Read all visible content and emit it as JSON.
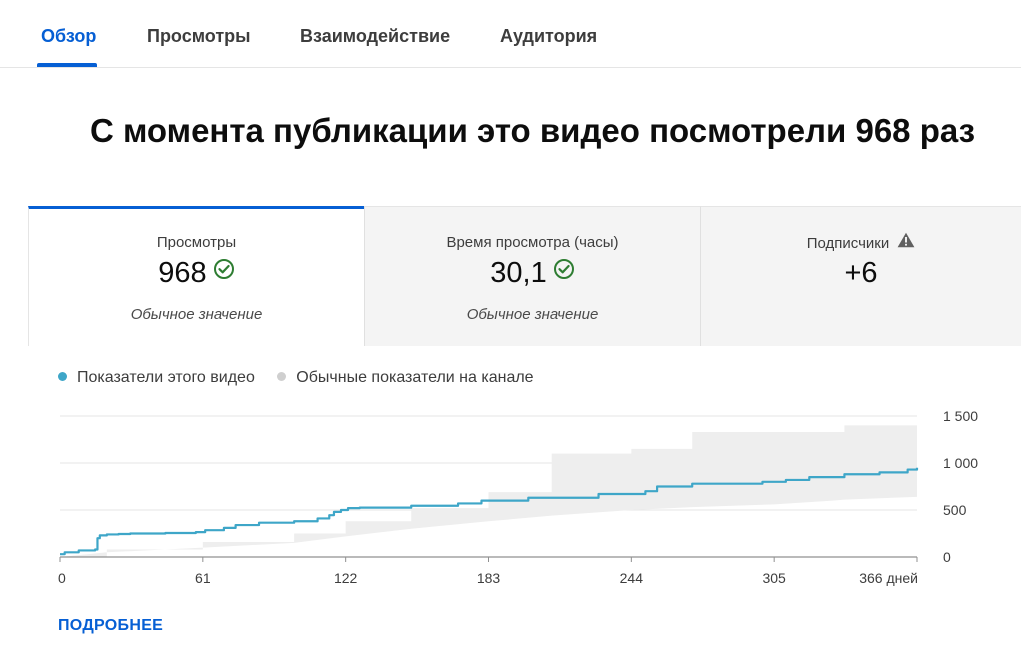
{
  "tabs": [
    {
      "label": "Обзор",
      "active": true
    },
    {
      "label": "Просмотры",
      "active": false
    },
    {
      "label": "Взаимодействие",
      "active": false
    },
    {
      "label": "Аудитория",
      "active": false
    }
  ],
  "headline": "С момента публикации это видео посмотрели 968 раз",
  "metrics": [
    {
      "label": "Просмотры",
      "value": "968",
      "note": "Обычное значение",
      "status_icon": "check-circle-icon",
      "selected": true
    },
    {
      "label": "Время просмотра (часы)",
      "value": "30,1",
      "note": "Обычное значение",
      "status_icon": "check-circle-icon",
      "selected": false
    },
    {
      "label": "Подписчики",
      "value": "+6",
      "status_icon": "warning-icon",
      "selected": false
    }
  ],
  "legend": {
    "this_video": "Показатели этого видео",
    "typical": "Обычные показатели на канале"
  },
  "colors": {
    "accent": "#065fd4",
    "series_line": "#3ea6c8",
    "typical_band": "#eeeeee",
    "typical_dot": "#cfcfcf",
    "check_green": "#2e7d32",
    "warning_gray": "#606060"
  },
  "chart_data": {
    "type": "area",
    "x_ticks": [
      0,
      61,
      122,
      183,
      244,
      305,
      366
    ],
    "x_tick_labels": [
      "0",
      "61",
      "122",
      "183",
      "244",
      "305",
      "366 дней"
    ],
    "y_ticks": [
      0,
      500,
      1000,
      1500
    ],
    "y_tick_labels": [
      "0",
      "500",
      "1 000",
      "1 500"
    ],
    "xlim": [
      0,
      366
    ],
    "ylim": [
      0,
      1500
    ],
    "grid": true,
    "series": [
      {
        "name": "Показатели этого видео",
        "x": [
          0,
          2,
          8,
          15,
          16,
          17,
          20,
          25,
          30,
          45,
          58,
          62,
          70,
          75,
          85,
          100,
          110,
          115,
          117,
          120,
          123,
          128,
          150,
          170,
          180,
          200,
          230,
          250,
          255,
          270,
          300,
          310,
          320,
          335,
          350,
          362,
          366
        ],
        "y": [
          30,
          50,
          70,
          80,
          200,
          230,
          240,
          245,
          250,
          255,
          265,
          285,
          310,
          340,
          365,
          380,
          410,
          445,
          480,
          500,
          520,
          525,
          545,
          570,
          600,
          630,
          670,
          700,
          750,
          780,
          800,
          820,
          850,
          880,
          900,
          930,
          950
        ]
      }
    ],
    "typical_band": {
      "name": "Обычные показатели на канале",
      "x": [
        0,
        20,
        61,
        100,
        122,
        150,
        183,
        210,
        244,
        270,
        305,
        330,
        335,
        366
      ],
      "lower": [
        0,
        50,
        100,
        150,
        220,
        300,
        380,
        440,
        500,
        530,
        560,
        600,
        610,
        640
      ],
      "upper": [
        0,
        80,
        160,
        250,
        380,
        520,
        690,
        1100,
        1150,
        1330,
        1330,
        1330,
        1400,
        1400
      ]
    }
  },
  "more_link": "ПОДРОБНЕЕ"
}
